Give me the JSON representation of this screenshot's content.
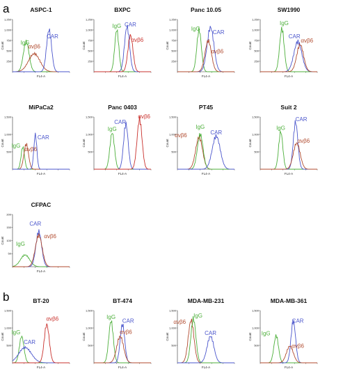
{
  "panel_letters": [
    "a",
    "b"
  ],
  "chart_data": [
    {
      "type": "line",
      "title": "ASPC-1",
      "xlabel": "FL4-A",
      "ylabel": "Count",
      "ylim": [
        0,
        1250
      ],
      "yticks": [
        "250",
        "500",
        "750",
        "1,000",
        "1,250"
      ],
      "series": [
        {
          "name": "IgG",
          "color": "#4caf3a",
          "values": [
            {
              "x": 1.0,
              "y": 320
            },
            {
              "x": 1.3,
              "y": 400
            },
            {
              "x": 1.6,
              "y": 520
            }
          ],
          "peak": {
            "x": 1.2,
            "y": 720,
            "w": 0.25
          },
          "labelX": 1.1,
          "labelY": 650
        },
        {
          "name": "αvβ6",
          "color": "#b04a2e",
          "peak": {
            "x": 1.9,
            "y": 430,
            "w": 0.5
          },
          "labelX": 1.9,
          "labelY": 560
        },
        {
          "name": "CAR",
          "color": "#4a55cc",
          "peak": {
            "x": 3.2,
            "y": 1000,
            "w": 0.22
          },
          "labelX": 3.5,
          "labelY": 800
        }
      ]
    },
    {
      "type": "line",
      "title": "BXPC",
      "xlabel": "FL4-A",
      "ylabel": "Count",
      "ylim": [
        0,
        1250
      ],
      "yticks": [
        "250",
        "500",
        "750",
        "1,000",
        "1,250"
      ],
      "series": [
        {
          "name": "IgG",
          "color": "#4caf3a",
          "peak": {
            "x": 2.0,
            "y": 1000,
            "w": 0.18
          },
          "labelX": 2.0,
          "labelY": 1050
        },
        {
          "name": "CAR",
          "color": "#4a55cc",
          "peak": {
            "x": 2.9,
            "y": 1080,
            "w": 0.22
          },
          "labelX": 3.2,
          "labelY": 1080
        },
        {
          "name": "αvβ6",
          "color": "#c9302c",
          "peak": {
            "x": 3.2,
            "y": 870,
            "w": 0.22
          },
          "labelX": 3.8,
          "labelY": 720
        }
      ]
    },
    {
      "type": "line",
      "title": "Panc 10.05",
      "xlabel": "FL4-A",
      "ylabel": "Count",
      "ylim": [
        0,
        1250
      ],
      "yticks": [
        "250",
        "500",
        "750",
        "1,000",
        "1,250"
      ],
      "series": [
        {
          "name": "IgG",
          "color": "#4caf3a",
          "peak": {
            "x": 1.9,
            "y": 1000,
            "w": 0.2
          },
          "labelX": 1.6,
          "labelY": 980
        },
        {
          "name": "CAR",
          "color": "#4a55cc",
          "peak": {
            "x": 2.9,
            "y": 1060,
            "w": 0.3
          },
          "labelX": 3.6,
          "labelY": 900
        },
        {
          "name": "αvβ6",
          "color": "#b04a2e",
          "peak": {
            "x": 2.7,
            "y": 740,
            "w": 0.28
          },
          "labelX": 3.5,
          "labelY": 440
        }
      ]
    },
    {
      "type": "line",
      "title": "SW1990",
      "xlabel": "FL4-A",
      "ylabel": "Count",
      "ylim": [
        0,
        1250
      ],
      "yticks": [
        "250",
        "500",
        "750",
        "1,000",
        "1,250"
      ],
      "series": [
        {
          "name": "IgG",
          "color": "#4caf3a",
          "peak": {
            "x": 1.9,
            "y": 1030,
            "w": 0.2
          },
          "labelX": 2.1,
          "labelY": 1120
        },
        {
          "name": "CAR",
          "color": "#4a55cc",
          "peak": {
            "x": 3.3,
            "y": 720,
            "w": 0.35
          },
          "labelX": 3.0,
          "labelY": 800
        },
        {
          "name": "αvβ6",
          "color": "#b04a2e",
          "peak": {
            "x": 3.5,
            "y": 650,
            "w": 0.3
          },
          "labelX": 4.1,
          "labelY": 700
        }
      ]
    },
    {
      "type": "line",
      "title": "MiPaCa2",
      "xlabel": "FL4-A",
      "ylabel": "Count",
      "ylim": [
        0,
        1500
      ],
      "yticks": [
        "500",
        "1,000",
        "1,500"
      ],
      "series": [
        {
          "name": "IgG",
          "color": "#4caf3a",
          "peak": {
            "x": 0.9,
            "y": 640,
            "w": 0.15
          },
          "labelX": 0.3,
          "labelY": 620
        },
        {
          "name": "αvβ6",
          "color": "#b04a2e",
          "peak": {
            "x": 1.2,
            "y": 720,
            "w": 0.2
          },
          "labelX": 1.6,
          "labelY": 520
        },
        {
          "name": "CAR",
          "color": "#4a55cc",
          "peak": {
            "x": 2.0,
            "y": 1000,
            "w": 0.13
          },
          "labelX": 2.7,
          "labelY": 860
        }
      ]
    },
    {
      "type": "line",
      "title": "Panc 0403",
      "xlabel": "FL4-A",
      "ylabel": "Count",
      "ylim": [
        0,
        1500
      ],
      "yticks": [
        "500",
        "1,000",
        "1,500"
      ],
      "series": [
        {
          "name": "IgG",
          "color": "#4caf3a",
          "peak": {
            "x": 1.6,
            "y": 1050,
            "w": 0.2
          },
          "labelX": 0,
          "labelY": 0
        },
        {
          "name": "CAR",
          "color": "#4a55cc",
          "peak": {
            "x": 2.8,
            "y": 1300,
            "w": 0.2
          },
          "labelX": 2.3,
          "labelY": 1300
        },
        {
          "name": "αvβ6",
          "color": "#c9302c",
          "peak": {
            "x": 4.0,
            "y": 1430,
            "w": 0.22
          },
          "labelX": 4.4,
          "labelY": 1460
        }
      ]
    },
    {
      "type": "line",
      "title": "PT45",
      "xlabel": "FL4-A",
      "ylabel": "Count",
      "ylim": [
        0,
        1500
      ],
      "yticks": [
        "500",
        "1,000",
        "1,500"
      ],
      "series": [
        {
          "name": "αvβ6",
          "color": "#b04a2e",
          "peak": {
            "x": 1.9,
            "y": 920,
            "w": 0.3
          },
          "labelX": 0.3,
          "labelY": 920
        },
        {
          "name": "IgG",
          "color": "#4caf3a",
          "peak": {
            "x": 2.0,
            "y": 1000,
            "w": 0.25
          },
          "labelX": 2.0,
          "labelY": 1160
        },
        {
          "name": "CAR",
          "color": "#4a55cc",
          "peak": {
            "x": 3.4,
            "y": 950,
            "w": 0.35
          },
          "labelX": 0,
          "labelY": 0
        }
      ]
    },
    {
      "type": "line",
      "title": "Suit 2",
      "xlabel": "FL4-A",
      "ylabel": "Count",
      "ylim": [
        0,
        1500
      ],
      "yticks": [
        "500",
        "1,000",
        "1,500"
      ],
      "series": [
        {
          "name": "IgG",
          "color": "#4caf3a",
          "peak": {
            "x": 1.8,
            "y": 1080,
            "w": 0.18
          },
          "labelX": 0,
          "labelY": 0
        },
        {
          "name": "CAR",
          "color": "#4a55cc",
          "peak": {
            "x": 3.1,
            "y": 1350,
            "w": 0.2
          },
          "labelX": 3.6,
          "labelY": 1380
        },
        {
          "name": "αvβ6",
          "color": "#b04a2e",
          "peak": {
            "x": 3.2,
            "y": 750,
            "w": 0.3
          },
          "labelX": 3.8,
          "labelY": 760
        }
      ]
    },
    {
      "type": "line",
      "title": "CFPAC",
      "xlabel": "FL4-A",
      "ylabel": "Count",
      "ylim": [
        0,
        200
      ],
      "yticks": [
        "50",
        "100",
        "150",
        "200"
      ],
      "series": [
        {
          "name": "IgG",
          "color": "#4caf3a",
          "peak": {
            "x": 1.1,
            "y": 45,
            "w": 0.4
          },
          "labelX": 0.7,
          "labelY": 80
        },
        {
          "name": "CAR",
          "color": "#4a55cc",
          "peak": {
            "x": 2.3,
            "y": 135,
            "w": 0.25
          },
          "labelX": 2.0,
          "labelY": 158
        },
        {
          "name": "αvβ6",
          "color": "#b04a2e",
          "peak": {
            "x": 2.3,
            "y": 120,
            "w": 0.3
          },
          "labelX": 3.3,
          "labelY": 110
        }
      ]
    },
    {
      "type": "line",
      "title": "BT-20",
      "xlabel": "FL4-A",
      "ylabel": "Count",
      "ylim": [
        0,
        1500
      ],
      "yticks": [
        "500",
        "1,000",
        "1,500"
      ],
      "series": [
        {
          "name": "IgG",
          "color": "#4caf3a",
          "peak": {
            "x": 0.8,
            "y": 760,
            "w": 0.2
          },
          "labelX": 0.3,
          "labelY": 820
        },
        {
          "name": "CAR",
          "color": "#4a55cc",
          "peak": {
            "x": 1.1,
            "y": 440,
            "w": 0.55
          },
          "labelX": 1.5,
          "labelY": 540
        },
        {
          "name": "αvβ6",
          "color": "#c9302c",
          "peak": {
            "x": 3.0,
            "y": 1100,
            "w": 0.22
          },
          "labelX": 3.5,
          "labelY": 1210
        }
      ]
    },
    {
      "type": "line",
      "title": "BT-474",
      "xlabel": "FL4-A",
      "ylabel": "Count",
      "ylim": [
        0,
        1500
      ],
      "yticks": [
        "500",
        "1,000",
        "1,500"
      ],
      "series": [
        {
          "name": "IgG",
          "color": "#4caf3a",
          "peak": {
            "x": 1.5,
            "y": 1200,
            "w": 0.2
          },
          "labelX": 0,
          "labelY": 0
        },
        {
          "name": "CAR",
          "color": "#4a55cc",
          "peak": {
            "x": 2.5,
            "y": 1100,
            "w": 0.2
          },
          "labelX": 3.0,
          "labelY": 1150
        },
        {
          "name": "αvβ6",
          "color": "#b04a2e",
          "peak": {
            "x": 2.3,
            "y": 760,
            "w": 0.3
          },
          "labelX": 2.8,
          "labelY": 830
        }
      ]
    },
    {
      "type": "line",
      "title": "MDA-MB-231",
      "xlabel": "FL4-A",
      "ylabel": "Count",
      "ylim": [
        0,
        1500
      ],
      "yticks": [
        "500",
        "1,000",
        "1,500"
      ],
      "series": [
        {
          "name": "αvβ6",
          "color": "#b04a2e",
          "peak": {
            "x": 1.2,
            "y": 1220,
            "w": 0.25
          },
          "labelX": 0.2,
          "labelY": 1120
        },
        {
          "name": "IgG",
          "color": "#4caf3a",
          "peak": {
            "x": 1.4,
            "y": 1260,
            "w": 0.22
          },
          "labelX": 1.8,
          "labelY": 1300
        },
        {
          "name": "CAR",
          "color": "#4a55cc",
          "peak": {
            "x": 2.9,
            "y": 760,
            "w": 0.3
          },
          "labelX": 0,
          "labelY": 0
        }
      ]
    },
    {
      "type": "line",
      "title": "MDA-MB-361",
      "xlabel": "FL4-A",
      "ylabel": "Count",
      "ylim": [
        0,
        1500
      ],
      "yticks": [
        "500",
        "1,000",
        "1,500"
      ],
      "series": [
        {
          "name": "IgG",
          "color": "#4caf3a",
          "peak": {
            "x": 1.4,
            "y": 780,
            "w": 0.2
          },
          "labelX": 0.5,
          "labelY": 790
        },
        {
          "name": "CAR",
          "color": "#4a55cc",
          "peak": {
            "x": 2.9,
            "y": 1200,
            "w": 0.2
          },
          "labelX": 3.3,
          "labelY": 1150
        },
        {
          "name": "αvβ6",
          "color": "#b04a2e",
          "peak": {
            "x": 2.6,
            "y": 480,
            "w": 0.3
          },
          "labelX": 3.3,
          "labelY": 430
        }
      ]
    }
  ]
}
